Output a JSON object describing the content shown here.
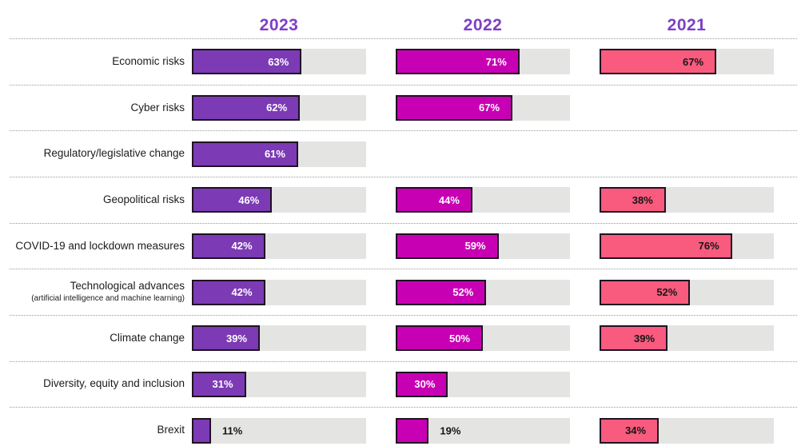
{
  "chart_data": {
    "type": "bar",
    "orientation": "horizontal",
    "unit": "%",
    "xlim": [
      0,
      100
    ],
    "value_suffix": "%",
    "legend_position": "top-column-headers",
    "grid": false,
    "years": [
      {
        "label": "2023",
        "bar_color": "#7C3AB5",
        "value_text_color": "#ffffff"
      },
      {
        "label": "2022",
        "bar_color": "#C800B4",
        "value_text_color": "#ffffff"
      },
      {
        "label": "2021",
        "bar_color": "#F85B7E",
        "value_text_color": "#161616"
      }
    ],
    "categories": [
      {
        "label": "Economic risks",
        "sublabel": "",
        "values": [
          63,
          71,
          67
        ]
      },
      {
        "label": "Cyber risks",
        "sublabel": "",
        "values": [
          62,
          67,
          null
        ]
      },
      {
        "label": "Regulatory/legislative change",
        "sublabel": "",
        "values": [
          61,
          null,
          null
        ]
      },
      {
        "label": "Geopolitical risks",
        "sublabel": "",
        "values": [
          46,
          44,
          38
        ]
      },
      {
        "label": "COVID-19 and lockdown measures",
        "sublabel": "",
        "values": [
          42,
          59,
          76
        ]
      },
      {
        "label": "Technological advances",
        "sublabel": "(artificial intelligence and machine learning)",
        "values": [
          42,
          52,
          52
        ]
      },
      {
        "label": "Climate change",
        "sublabel": "",
        "values": [
          39,
          50,
          39
        ]
      },
      {
        "label": "Diversity, equity and inclusion",
        "sublabel": "",
        "values": [
          31,
          30,
          null
        ]
      },
      {
        "label": "Brexit",
        "sublabel": "",
        "values": [
          11,
          19,
          34
        ]
      }
    ],
    "colors": {
      "header_text": "#7E3FC4",
      "track": "#E4E4E3",
      "bar_border": "#1E1222",
      "category_label": "#1b1b1b",
      "separator": "#9b9b9b",
      "outside_value_text": "#161616"
    },
    "outside_label_threshold": 25
  }
}
